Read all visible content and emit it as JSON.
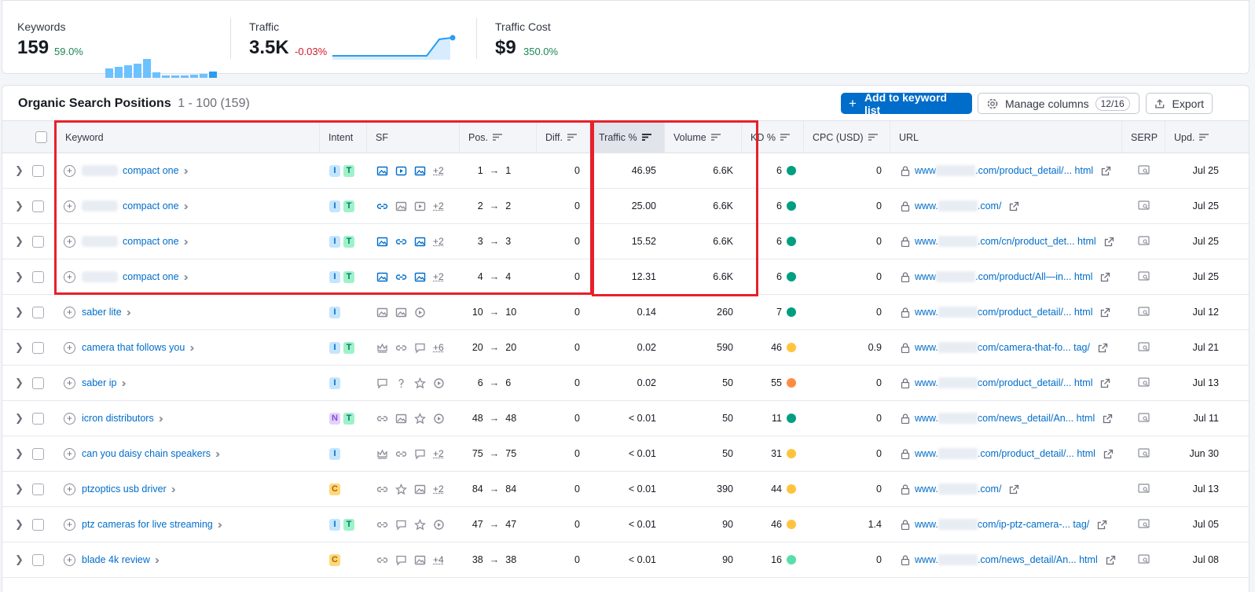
{
  "stats": {
    "keywords": {
      "label": "Keywords",
      "value": "159",
      "delta": "59.0%"
    },
    "traffic": {
      "label": "Traffic",
      "value": "3.5K",
      "delta": "-0.03%"
    },
    "cost": {
      "label": "Traffic Cost",
      "value": "$9",
      "delta": "350.0%"
    }
  },
  "table": {
    "title": "Organic Search Positions",
    "range": "1 - 100 (159)",
    "add_button": "Add to keyword list",
    "manage_button": "Manage columns",
    "manage_count": "12/16",
    "export_button": "Export",
    "columns": {
      "keyword": "Keyword",
      "intent": "Intent",
      "sf": "SF",
      "pos": "Pos.",
      "diff": "Diff.",
      "traffic": "Traffic %",
      "volume": "Volume",
      "kd": "KD %",
      "cpc": "CPC (USD)",
      "url": "URL",
      "serp": "SERP",
      "upd": "Upd."
    }
  },
  "colors": {
    "kd_green": "#009f81",
    "kd_yellow": "#ffc43d",
    "kd_orange": "#ff8c43",
    "kd_light_green": "#59ddaa",
    "accent": "#006dca",
    "highlight": "#e8202a"
  },
  "rows": [
    {
      "keyword": "compact one",
      "blurred": true,
      "intents": [
        "I",
        "T"
      ],
      "sf": [
        "image-icon",
        "video-icon",
        "image-icon"
      ],
      "sf_more": "+2",
      "pos_from": "1",
      "pos_to": "1",
      "diff": "0",
      "traffic": "46.95",
      "volume": "6.6K",
      "kd": "6",
      "kd_color": "#009f81",
      "cpc": "0",
      "url_pre": "www",
      "url_post": ".com/product_detail/... html",
      "upd": "Jul 25"
    },
    {
      "keyword": "compact one",
      "blurred": true,
      "intents": [
        "I",
        "T"
      ],
      "sf": [
        "link-icon",
        "image-icon",
        "video-icon"
      ],
      "sf_more": "+2",
      "pos_from": "2",
      "pos_to": "2",
      "diff": "0",
      "traffic": "25.00",
      "volume": "6.6K",
      "kd": "6",
      "kd_color": "#009f81",
      "cpc": "0",
      "url_pre": "www.",
      "url_post": ".com/",
      "upd": "Jul 25"
    },
    {
      "keyword": "compact one",
      "blurred": true,
      "intents": [
        "I",
        "T"
      ],
      "sf": [
        "image-icon",
        "link-icon",
        "image-icon"
      ],
      "sf_more": "+2",
      "pos_from": "3",
      "pos_to": "3",
      "diff": "0",
      "traffic": "15.52",
      "volume": "6.6K",
      "kd": "6",
      "kd_color": "#009f81",
      "cpc": "0",
      "url_pre": "www.",
      "url_post": ".com/cn/product_det... html",
      "upd": "Jul 25"
    },
    {
      "keyword": "compact one",
      "blurred": true,
      "intents": [
        "I",
        "T"
      ],
      "sf": [
        "image-icon",
        "link-icon",
        "image-icon"
      ],
      "sf_more": "+2",
      "pos_from": "4",
      "pos_to": "4",
      "diff": "0",
      "traffic": "12.31",
      "volume": "6.6K",
      "kd": "6",
      "kd_color": "#009f81",
      "cpc": "0",
      "url_pre": "www",
      "url_post": ".com/product/All—in... html",
      "upd": "Jul 25"
    },
    {
      "keyword": "saber lite",
      "blurred": false,
      "intents": [
        "I"
      ],
      "sf": [
        "image-icon",
        "image-icon",
        "play-icon"
      ],
      "sf_more": "",
      "pos_from": "10",
      "pos_to": "10",
      "diff": "0",
      "traffic": "0.14",
      "volume": "260",
      "kd": "7",
      "kd_color": "#009f81",
      "cpc": "0",
      "url_pre": "www.",
      "url_post": "com/product_detail/... html",
      "upd": "Jul 12"
    },
    {
      "keyword": "camera that follows you",
      "blurred": false,
      "intents": [
        "I",
        "T"
      ],
      "sf": [
        "crown-icon",
        "link-icon",
        "review-icon"
      ],
      "sf_more": "+6",
      "pos_from": "20",
      "pos_to": "20",
      "diff": "0",
      "traffic": "0.02",
      "volume": "590",
      "kd": "46",
      "kd_color": "#ffc43d",
      "cpc": "0.9",
      "url_pre": "www.",
      "url_post": "com/camera-that-fo... tag/",
      "upd": "Jul 21"
    },
    {
      "keyword": "saber ip",
      "blurred": false,
      "intents": [
        "I"
      ],
      "sf": [
        "review-icon",
        "question-icon",
        "star-icon",
        "play-icon"
      ],
      "sf_more": "",
      "pos_from": "6",
      "pos_to": "6",
      "diff": "0",
      "traffic": "0.02",
      "volume": "50",
      "kd": "55",
      "kd_color": "#ff8c43",
      "cpc": "0",
      "url_pre": "www.",
      "url_post": "com/product_detail/... html",
      "upd": "Jul 13"
    },
    {
      "keyword": "icron distributors",
      "blurred": false,
      "intents": [
        "N",
        "T"
      ],
      "sf": [
        "link-icon",
        "image-icon",
        "star-icon",
        "play-icon"
      ],
      "sf_more": "",
      "pos_from": "48",
      "pos_to": "48",
      "diff": "0",
      "traffic": "< 0.01",
      "volume": "50",
      "kd": "11",
      "kd_color": "#009f81",
      "cpc": "0",
      "url_pre": "www.",
      "url_post": "com/news_detail/An... html",
      "upd": "Jul 11"
    },
    {
      "keyword": "can you daisy chain speakers",
      "blurred": false,
      "intents": [
        "I"
      ],
      "sf": [
        "crown-icon",
        "link-icon",
        "review-icon"
      ],
      "sf_more": "+2",
      "pos_from": "75",
      "pos_to": "75",
      "diff": "0",
      "traffic": "< 0.01",
      "volume": "50",
      "kd": "31",
      "kd_color": "#ffc43d",
      "cpc": "0",
      "url_pre": "www.",
      "url_post": ".com/product_detail/... html",
      "upd": "Jun 30"
    },
    {
      "keyword": "ptzoptics usb driver",
      "blurred": false,
      "intents": [
        "C"
      ],
      "sf": [
        "link-icon",
        "star-icon",
        "image-icon"
      ],
      "sf_more": "+2",
      "pos_from": "84",
      "pos_to": "84",
      "diff": "0",
      "traffic": "< 0.01",
      "volume": "390",
      "kd": "44",
      "kd_color": "#ffc43d",
      "cpc": "0",
      "url_pre": "www.",
      "url_post": ".com/",
      "upd": "Jul 13"
    },
    {
      "keyword": "ptz cameras for live streaming",
      "blurred": false,
      "intents": [
        "I",
        "T"
      ],
      "sf": [
        "link-icon",
        "review-icon",
        "star-icon",
        "play-icon"
      ],
      "sf_more": "",
      "pos_from": "47",
      "pos_to": "47",
      "diff": "0",
      "traffic": "< 0.01",
      "volume": "90",
      "kd": "46",
      "kd_color": "#ffc43d",
      "cpc": "1.4",
      "url_pre": "www.",
      "url_post": "com/ip-ptz-camera-... tag/",
      "upd": "Jul 05"
    },
    {
      "keyword": "blade 4k review",
      "blurred": false,
      "intents": [
        "C"
      ],
      "sf": [
        "link-icon",
        "review-icon",
        "image-icon"
      ],
      "sf_more": "+4",
      "pos_from": "38",
      "pos_to": "38",
      "diff": "0",
      "traffic": "< 0.01",
      "volume": "90",
      "kd": "16",
      "kd_color": "#59ddaa",
      "cpc": "0",
      "url_pre": "www.",
      "url_post": ".com/news_detail/An... html",
      "upd": "Jul 08"
    }
  ]
}
